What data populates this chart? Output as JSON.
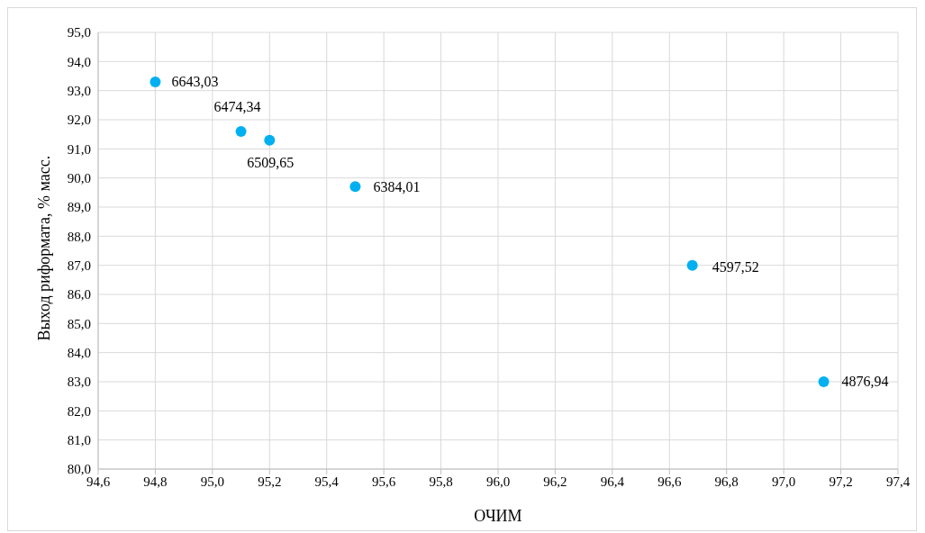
{
  "chart_data": {
    "type": "scatter",
    "xlabel": "ОЧИМ",
    "ylabel": "Выход риформата, % масс.",
    "x": [
      94.8,
      95.1,
      95.2,
      95.5,
      96.68,
      97.14
    ],
    "values": [
      93.3,
      91.6,
      91.3,
      89.7,
      87.0,
      83.0
    ],
    "color": "#00b0f0",
    "marker": "circle",
    "grid": true,
    "xlim": [
      94.6,
      97.4
    ],
    "xticks": [
      {
        "value": 94.6,
        "label": "94,6"
      },
      {
        "value": 94.8,
        "label": "94,8"
      },
      {
        "value": 95.0,
        "label": "95,0"
      },
      {
        "value": 95.2,
        "label": "95,2"
      },
      {
        "value": 95.4,
        "label": "95,4"
      },
      {
        "value": 95.6,
        "label": "95,6"
      },
      {
        "value": 95.8,
        "label": "95,8"
      },
      {
        "value": 96.0,
        "label": "96,0"
      },
      {
        "value": 96.2,
        "label": "96,2"
      },
      {
        "value": 96.4,
        "label": "96,4"
      },
      {
        "value": 96.6,
        "label": "96,6"
      },
      {
        "value": 96.8,
        "label": "96,8"
      },
      {
        "value": 97.0,
        "label": "97,0"
      },
      {
        "value": 97.2,
        "label": "97,2"
      },
      {
        "value": 97.4,
        "label": "97,4"
      }
    ],
    "ylim": [
      80,
      95
    ],
    "yticks": [
      {
        "value": 80,
        "label": "80,0"
      },
      {
        "value": 81,
        "label": "81,0"
      },
      {
        "value": 82,
        "label": "82,0"
      },
      {
        "value": 83,
        "label": "83,0"
      },
      {
        "value": 84,
        "label": "84,0"
      },
      {
        "value": 85,
        "label": "85,0"
      },
      {
        "value": 86,
        "label": "86,0"
      },
      {
        "value": 87,
        "label": "87,0"
      },
      {
        "value": 88,
        "label": "88,0"
      },
      {
        "value": 89,
        "label": "89,0"
      },
      {
        "value": 90,
        "label": "90,0"
      },
      {
        "value": 91,
        "label": "91,0"
      },
      {
        "value": 92,
        "label": "92,0"
      },
      {
        "value": 93,
        "label": "93,0"
      },
      {
        "value": 94,
        "label": "94,0"
      },
      {
        "value": 95,
        "label": "95,0"
      }
    ],
    "annotations": [
      {
        "text": "6643,03",
        "x": 94.8,
        "y": 93.3
      },
      {
        "text": "6474,34",
        "x": 95.1,
        "y": 91.6
      },
      {
        "text": "6509,65",
        "x": 95.2,
        "y": 91.3
      },
      {
        "text": "6384,01",
        "x": 95.5,
        "y": 89.7
      },
      {
        "text": "4597,52",
        "x": 96.68,
        "y": 87.0
      },
      {
        "text": "4876,94",
        "x": 97.14,
        "y": 83.0
      }
    ]
  }
}
